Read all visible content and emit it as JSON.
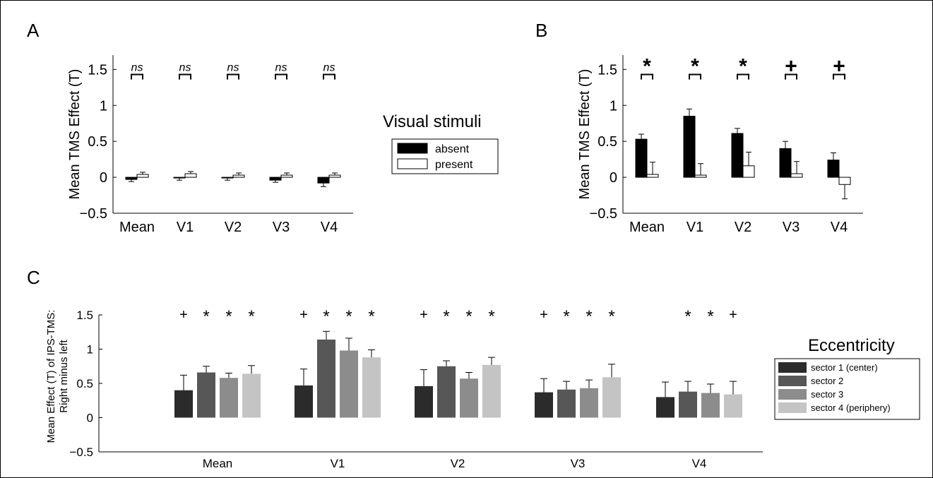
{
  "panels": {
    "A": {
      "label": "A"
    },
    "B": {
      "label": "B"
    },
    "C": {
      "label": "C"
    }
  },
  "legend_visual": {
    "title": "Visual stimuli",
    "items": [
      {
        "label": "absent",
        "color": "#000000"
      },
      {
        "label": "present",
        "color": "#ffffff"
      }
    ]
  },
  "legend_ecc": {
    "title": "Eccentricity",
    "items": [
      {
        "label": "sector 1 (center)",
        "color": "#2b2b2b"
      },
      {
        "label": "sector 2",
        "color": "#575757"
      },
      {
        "label": "sector 3",
        "color": "#8c8c8c"
      },
      {
        "label": "sector 4 (periphery)",
        "color": "#c4c4c4"
      }
    ]
  },
  "chart_data": [
    {
      "panel": "A",
      "type": "bar",
      "categories": [
        "Mean",
        "V1",
        "V2",
        "V3",
        "V4"
      ],
      "ylabel": "Mean TMS Effect (T)",
      "ylim": [
        -0.5,
        1.7
      ],
      "yticks": [
        -0.5,
        0,
        0.5,
        1,
        1.5
      ],
      "ytick_labels": [
        "−0.5",
        "0",
        "0.5",
        "1",
        "1.5"
      ],
      "series": [
        {
          "name": "absent",
          "values": [
            -0.03,
            -0.01,
            -0.01,
            -0.04,
            -0.08
          ],
          "errors": [
            0.03,
            0.03,
            0.03,
            0.03,
            0.05
          ]
        },
        {
          "name": "present",
          "values": [
            0.04,
            0.05,
            0.03,
            0.03,
            0.03
          ],
          "errors": [
            0.03,
            0.03,
            0.03,
            0.03,
            0.03
          ]
        }
      ],
      "significance": [
        "ns",
        "ns",
        "ns",
        "ns",
        "ns"
      ]
    },
    {
      "panel": "B",
      "type": "bar",
      "categories": [
        "Mean",
        "V1",
        "V2",
        "V3",
        "V4"
      ],
      "ylabel": "Mean TMS Effect (T)",
      "ylim": [
        -0.5,
        1.7
      ],
      "yticks": [
        -0.5,
        0,
        0.5,
        1,
        1.5
      ],
      "ytick_labels": [
        "−0.5",
        "0",
        "0.5",
        "1",
        "1.5"
      ],
      "series": [
        {
          "name": "absent",
          "values": [
            0.53,
            0.85,
            0.61,
            0.4,
            0.24
          ],
          "errors": [
            0.07,
            0.1,
            0.07,
            0.1,
            0.1
          ]
        },
        {
          "name": "present",
          "values": [
            0.04,
            0.03,
            0.16,
            0.05,
            -0.1
          ],
          "errors": [
            0.17,
            0.16,
            0.19,
            0.17,
            0.2
          ]
        }
      ],
      "significance": [
        "*",
        "*",
        "*",
        "+",
        "+"
      ]
    },
    {
      "panel": "C",
      "type": "bar",
      "categories": [
        "Mean",
        "V1",
        "V2",
        "V3",
        "V4"
      ],
      "ylabel": "Mean Effect (T) of IPS-TMS:",
      "ylabel2": "Right minus left",
      "ylim": [
        -0.5,
        1.5
      ],
      "yticks": [
        -0.5,
        0,
        0.5,
        1,
        1.5
      ],
      "ytick_labels": [
        "−0.5",
        "0",
        "0.5",
        "1",
        "1.5"
      ],
      "series": [
        {
          "name": "sector 1 (center)",
          "values": [
            0.4,
            0.47,
            0.46,
            0.37,
            0.3
          ],
          "errors": [
            0.22,
            0.24,
            0.24,
            0.2,
            0.22
          ],
          "marks": [
            "+",
            "+",
            "+",
            "+",
            ""
          ]
        },
        {
          "name": "sector 2",
          "values": [
            0.66,
            1.14,
            0.75,
            0.41,
            0.38
          ],
          "errors": [
            0.09,
            0.12,
            0.08,
            0.12,
            0.15
          ],
          "marks": [
            "*",
            "*",
            "*",
            "*",
            "*"
          ]
        },
        {
          "name": "sector 3",
          "values": [
            0.58,
            0.98,
            0.57,
            0.43,
            0.36
          ],
          "errors": [
            0.07,
            0.18,
            0.09,
            0.12,
            0.13
          ],
          "marks": [
            "*",
            "*",
            "*",
            "*",
            "*"
          ]
        },
        {
          "name": "sector 4 (periphery)",
          "values": [
            0.64,
            0.88,
            0.77,
            0.59,
            0.34
          ],
          "errors": [
            0.12,
            0.11,
            0.11,
            0.19,
            0.19
          ],
          "marks": [
            "*",
            "*",
            "*",
            "*",
            "+"
          ]
        }
      ]
    }
  ]
}
